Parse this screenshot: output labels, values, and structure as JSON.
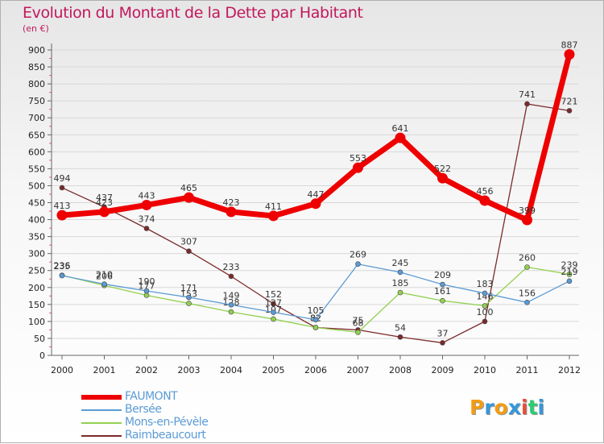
{
  "header": {
    "title": "Evolution du Montant de la Dette par Habitant",
    "unit": "(en €)"
  },
  "logo": {
    "letters": [
      "P",
      "r",
      "o",
      "x",
      "i",
      "t",
      "i"
    ],
    "colors": [
      "#f39c12",
      "#3498db",
      "#f39c12",
      "#3498db",
      "#e74c3c",
      "#2ecc71",
      "#3498db"
    ]
  },
  "chart_data": {
    "type": "line",
    "title": "Evolution du Montant de la Dette par Habitant",
    "ylabel": "(en €)",
    "xlabel": "",
    "ylim": [
      0,
      900
    ],
    "y_ticks": [
      0,
      50,
      100,
      150,
      200,
      250,
      300,
      350,
      400,
      450,
      500,
      550,
      600,
      650,
      700,
      750,
      800,
      850,
      900
    ],
    "categories": [
      "2000",
      "2001",
      "2002",
      "2003",
      "2004",
      "2005",
      "2006",
      "2007",
      "2008",
      "2009",
      "2010",
      "2011",
      "2012"
    ],
    "grid": "horizontal",
    "legend_position": "bottom-left",
    "series": [
      {
        "name": "FAUMONT",
        "color": "#ee0000",
        "values": [
          413,
          423,
          443,
          465,
          423,
          411,
          447,
          553,
          641,
          522,
          456,
          399,
          887
        ]
      },
      {
        "name": "Bersée",
        "color": "#5b9bd5",
        "values": [
          235,
          210,
          190,
          171,
          149,
          127,
          105,
          269,
          245,
          209,
          183,
          156,
          219
        ]
      },
      {
        "name": "Mons-en-Pévèle",
        "color": "#92d050",
        "values": [
          236,
          206,
          177,
          153,
          128,
          107,
          82,
          68,
          185,
          161,
          146,
          260,
          239
        ]
      },
      {
        "name": "Raimbeaucourt",
        "color": "#7b2a2a",
        "values": [
          494,
          437,
          374,
          307,
          233,
          152,
          82,
          75,
          54,
          37,
          100,
          741,
          721
        ]
      }
    ]
  }
}
